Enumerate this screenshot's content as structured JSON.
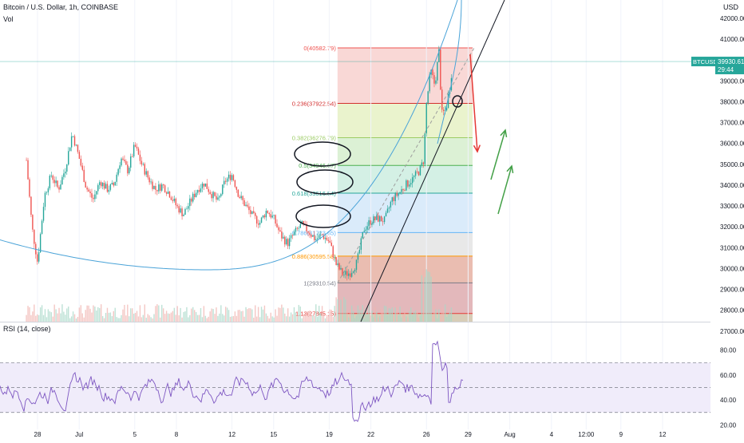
{
  "header": {
    "symbol_line": "Bitcoin / U.S. Dollar, 1h, COINBASE",
    "volume_label": "Vol",
    "currency": "USD"
  },
  "rsi": {
    "label": "RSI (14, close)",
    "levels": [
      80,
      60,
      40,
      20
    ],
    "upper_band": 70,
    "lower_band": 30,
    "line_color": "#7e57c2"
  },
  "price_tag": {
    "symbol": "BTCUSD",
    "price": "39930.61",
    "countdown": "29:44",
    "color": "#26a69a"
  },
  "chart_data": {
    "type": "candlestick",
    "y_axis": {
      "min": 26500,
      "max": 42500,
      "ticks": [
        42000,
        41000,
        40000,
        39000,
        38000,
        37000,
        36000,
        35000,
        34000,
        33000,
        32000,
        31000,
        30000,
        29000,
        28000,
        27000
      ]
    },
    "x_axis": {
      "ticks": [
        {
          "label": "28",
          "day": -2
        },
        {
          "label": "Jul",
          "day": 1
        },
        {
          "label": "5",
          "day": 5
        },
        {
          "label": "8",
          "day": 8
        },
        {
          "label": "12",
          "day": 12
        },
        {
          "label": "15",
          "day": 15
        },
        {
          "label": "19",
          "day": 19
        },
        {
          "label": "22",
          "day": 22
        },
        {
          "label": "26",
          "day": 26
        },
        {
          "label": "29",
          "day": 29
        },
        {
          "label": "Aug",
          "day": 32
        },
        {
          "label": "4",
          "day": 35
        },
        {
          "label": "12:00",
          "day": 37.5
        },
        {
          "label": "9",
          "day": 40
        },
        {
          "label": "12",
          "day": 43
        }
      ]
    },
    "price_path": [
      {
        "day": -2.8,
        "price": 35200
      },
      {
        "day": -2.4,
        "price": 32000
      },
      {
        "day": -2.0,
        "price": 30300
      },
      {
        "day": -1.5,
        "price": 33500
      },
      {
        "day": -1.0,
        "price": 34500
      },
      {
        "day": -0.5,
        "price": 33800
      },
      {
        "day": 0.0,
        "price": 34800
      },
      {
        "day": 0.5,
        "price": 36500
      },
      {
        "day": 1.0,
        "price": 35300
      },
      {
        "day": 1.5,
        "price": 33900
      },
      {
        "day": 2.0,
        "price": 33300
      },
      {
        "day": 2.5,
        "price": 34200
      },
      {
        "day": 3.0,
        "price": 33800
      },
      {
        "day": 3.5,
        "price": 34000
      },
      {
        "day": 4.0,
        "price": 35300
      },
      {
        "day": 4.5,
        "price": 34700
      },
      {
        "day": 5.0,
        "price": 35900
      },
      {
        "day": 5.5,
        "price": 35000
      },
      {
        "day": 6.0,
        "price": 34300
      },
      {
        "day": 6.5,
        "price": 33800
      },
      {
        "day": 7.0,
        "price": 34000
      },
      {
        "day": 7.5,
        "price": 33600
      },
      {
        "day": 8.0,
        "price": 33000
      },
      {
        "day": 8.5,
        "price": 32600
      },
      {
        "day": 9.0,
        "price": 33200
      },
      {
        "day": 9.5,
        "price": 33800
      },
      {
        "day": 10.0,
        "price": 34100
      },
      {
        "day": 10.5,
        "price": 33600
      },
      {
        "day": 11.0,
        "price": 33200
      },
      {
        "day": 11.5,
        "price": 34200
      },
      {
        "day": 12.0,
        "price": 34500
      },
      {
        "day": 12.5,
        "price": 33500
      },
      {
        "day": 13.0,
        "price": 33000
      },
      {
        "day": 13.5,
        "price": 32500
      },
      {
        "day": 14.0,
        "price": 32200
      },
      {
        "day": 14.5,
        "price": 32800
      },
      {
        "day": 15.0,
        "price": 32400
      },
      {
        "day": 15.5,
        "price": 31600
      },
      {
        "day": 16.0,
        "price": 31200
      },
      {
        "day": 16.5,
        "price": 31700
      },
      {
        "day": 17.0,
        "price": 32100
      },
      {
        "day": 17.5,
        "price": 31800
      },
      {
        "day": 18.0,
        "price": 31400
      },
      {
        "day": 18.5,
        "price": 31600
      },
      {
        "day": 19.0,
        "price": 31300
      },
      {
        "day": 19.5,
        "price": 30200
      },
      {
        "day": 20.0,
        "price": 29700
      },
      {
        "day": 20.5,
        "price": 29800
      },
      {
        "day": 21.0,
        "price": 30300
      },
      {
        "day": 21.5,
        "price": 31900
      },
      {
        "day": 22.0,
        "price": 32300
      },
      {
        "day": 22.5,
        "price": 32400
      },
      {
        "day": 23.0,
        "price": 32300
      },
      {
        "day": 23.5,
        "price": 33300
      },
      {
        "day": 24.0,
        "price": 33600
      },
      {
        "day": 24.5,
        "price": 34000
      },
      {
        "day": 25.0,
        "price": 34300
      },
      {
        "day": 25.5,
        "price": 34700
      },
      {
        "day": 25.8,
        "price": 35200
      },
      {
        "day": 26.0,
        "price": 37900
      },
      {
        "day": 26.3,
        "price": 39500
      },
      {
        "day": 26.6,
        "price": 38800
      },
      {
        "day": 26.9,
        "price": 40400
      },
      {
        "day": 27.1,
        "price": 37400
      },
      {
        "day": 27.4,
        "price": 37600
      },
      {
        "day": 27.7,
        "price": 38800
      },
      {
        "day": 27.9,
        "price": 39930
      }
    ],
    "fibonacci": {
      "start_day": 19.6,
      "end_day": 28.0,
      "levels": [
        {
          "ratio": "0",
          "price": 40582.79,
          "label": "0(40582.79)",
          "color": "#ef5350",
          "fill": "#f8d4d2"
        },
        {
          "ratio": "0.236",
          "price": 37922.54,
          "label": "0.236(37922.54)",
          "color": "#d32f2f",
          "fill": "#e8f2c8"
        },
        {
          "ratio": "0.382",
          "price": 36276.79,
          "label": "0.382(36276.79)",
          "color": "#9ccc65",
          "fill": "#d8f0d0"
        },
        {
          "ratio": "0.5",
          "price": 34946.67,
          "label": "0.5(34946.67)",
          "color": "#4caf50",
          "fill": "#cfeee2"
        },
        {
          "ratio": "0.618",
          "price": 33616.54,
          "label": "0.618(33616.54)",
          "color": "#26a69a",
          "fill": "#d6e9f9"
        },
        {
          "ratio": "0.786",
          "price": 31723.65,
          "label": "0.786(31723.65)",
          "color": "#64b5f6",
          "fill": "#e6e6e6"
        },
        {
          "ratio": "0.886",
          "price": 30595.58,
          "label": "0.886(30595.58)",
          "color": "#ff9800",
          "fill": "#e8b6a8"
        },
        {
          "ratio": "1",
          "price": 29310.54,
          "label": "1(29310.54)",
          "color": "#787b86",
          "fill": "#e0b0b4"
        },
        {
          "ratio": "1.13",
          "price": 27845.15,
          "label": "1.13(27845.15)",
          "color": "#e53935",
          "fill": "#d4c8b0"
        }
      ]
    }
  }
}
